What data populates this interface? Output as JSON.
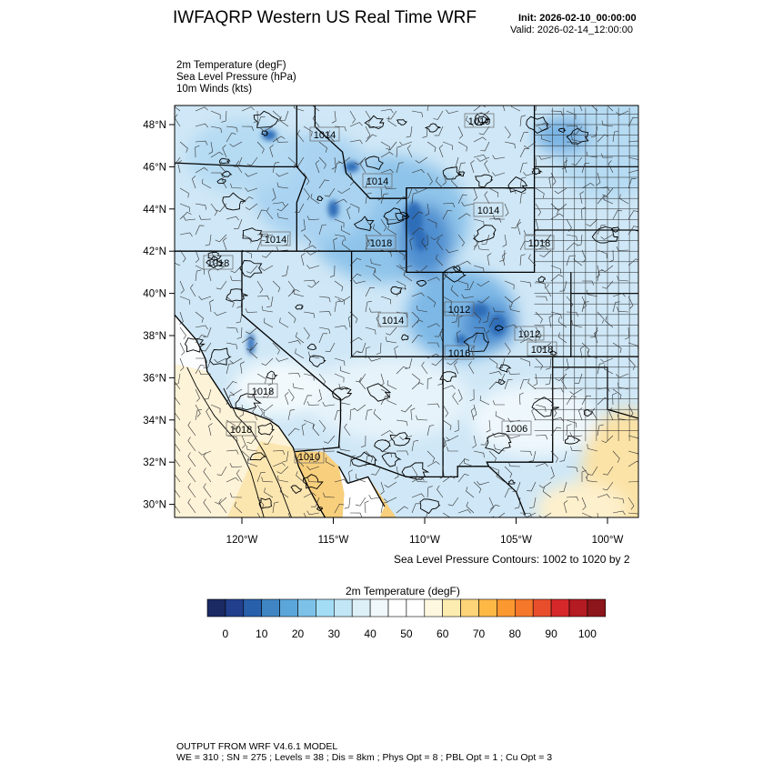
{
  "header": {
    "title": "IWFAQRP Western US Real Time WRF",
    "init": "Init: 2026-02-10_00:00:00",
    "valid": "Valid: 2026-02-14_12:00:00"
  },
  "fields": [
    "2m Temperature   (degF)",
    "Sea Level Pressure   (hPa)",
    "10m Winds   (kts)"
  ],
  "map": {
    "lat_labels": [
      "48°N",
      "46°N",
      "44°N",
      "42°N",
      "40°N",
      "38°N",
      "36°N",
      "34°N",
      "32°N",
      "30°N"
    ],
    "lon_labels": [
      "120°W",
      "115°W",
      "110°W",
      "105°W",
      "100°W"
    ],
    "pressure_labels": [
      "1010",
      "1014",
      "1014",
      "1014",
      "1014",
      "1018",
      "1018",
      "1012",
      "1018",
      "1014",
      "1012",
      "1016",
      "1018",
      "1018",
      "1018",
      "1010",
      "1006"
    ],
    "contour_note": "Sea Level Pressure Contours: 1002 to 1020 by 2"
  },
  "colorbar": {
    "title": "2m Temperature  (degF)",
    "labels": [
      "0",
      "10",
      "20",
      "30",
      "40",
      "50",
      "60",
      "70",
      "80",
      "90",
      "100"
    ],
    "colors": [
      "#1b2a62",
      "#213f8c",
      "#2860ab",
      "#3f85c3",
      "#5aa6da",
      "#7cc2e8",
      "#a3ddf5",
      "#c2e6f5",
      "#ddf0f8",
      "#f0f8fc",
      "#ffffff",
      "#ffffff",
      "#fff8e0",
      "#fdecb0",
      "#fdd478",
      "#fdb846",
      "#fb9830",
      "#f5772a",
      "#e84e2c",
      "#d6282a",
      "#b41b22",
      "#8c161b"
    ]
  },
  "footer": {
    "line1": "OUTPUT FROM WRF V4.6.1 MODEL",
    "line2": "WE = 310 ; SN = 275 ; Levels = 38 ; Dis = 8km ; Phys Opt = 8 ; PBL Opt = 1 ; Cu Opt = 3"
  }
}
